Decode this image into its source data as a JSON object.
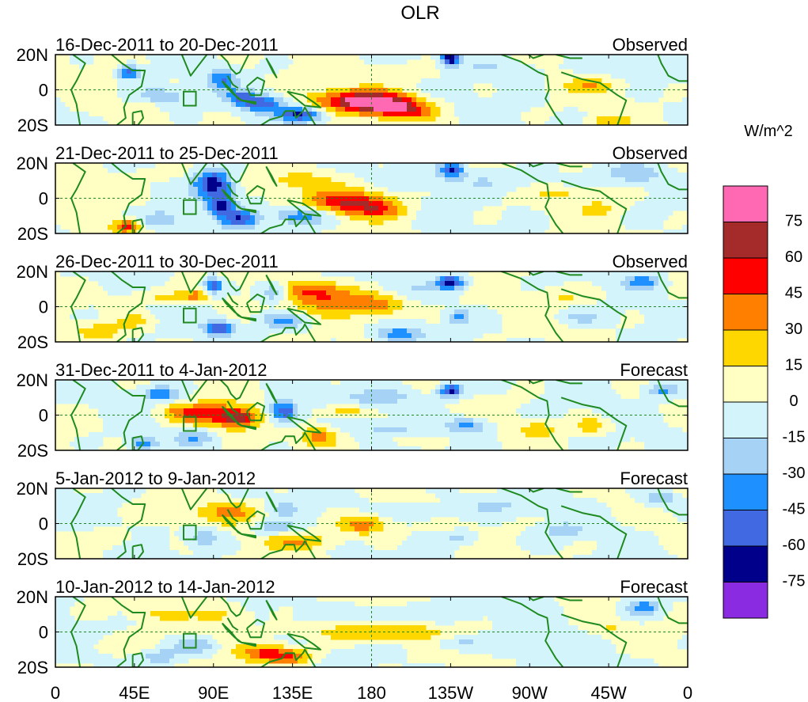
{
  "chart_data": {
    "type": "heatmap",
    "title": "OLR",
    "units_label": "W/m^2",
    "x_ticks": [
      "0",
      "45E",
      "90E",
      "135E",
      "180",
      "135W",
      "90W",
      "45W",
      "0"
    ],
    "x_tick_lon": [
      0,
      45,
      90,
      135,
      180,
      225,
      270,
      315,
      360
    ],
    "y_ticks": [
      "20N",
      "0",
      "20S"
    ],
    "y_tick_lat": [
      20,
      0,
      -20
    ],
    "lat_range": [
      -20,
      20
    ],
    "lon_range": [
      0,
      360
    ],
    "colorbar": {
      "labels": [
        "75",
        "60",
        "45",
        "30",
        "15",
        "0",
        "-15",
        "-30",
        "-45",
        "-60",
        "-75"
      ],
      "levels": [
        75,
        60,
        45,
        30,
        15,
        0,
        -15,
        -30,
        -45,
        -60,
        -75
      ],
      "colors": [
        "#ff69b4",
        "#a52a2a",
        "#ff0000",
        "#ff7f00",
        "#ffd700",
        "#ffffc4",
        "#d4f4fb",
        "#a6d2f5",
        "#1e90ff",
        "#4169e1",
        "#00008b",
        "#8a2be2"
      ]
    },
    "panels": [
      {
        "period": "16-Dec-2011 to 20-Dec-2011",
        "status": "Observed",
        "blobs": [
          [
            170,
            -6,
            25,
            6,
            55
          ],
          [
            185,
            -8,
            20,
            6,
            55
          ],
          [
            200,
            -12,
            15,
            5,
            45
          ],
          [
            225,
            18,
            5,
            4,
            -75
          ],
          [
            118,
            -8,
            12,
            5,
            -55
          ],
          [
            140,
            -14,
            12,
            4,
            -60
          ],
          [
            95,
            6,
            8,
            6,
            -40
          ],
          [
            60,
            -4,
            15,
            5,
            -35
          ],
          [
            42,
            10,
            6,
            4,
            -55
          ],
          [
            105,
            -4,
            8,
            4,
            -40
          ],
          [
            305,
            2,
            15,
            4,
            25
          ],
          [
            315,
            -18,
            10,
            3,
            30
          ],
          [
            50,
            -8,
            8,
            4,
            20
          ],
          [
            250,
            12,
            30,
            6,
            -15
          ],
          [
            200,
            10,
            40,
            6,
            10
          ],
          [
            330,
            14,
            20,
            5,
            -15
          ],
          [
            20,
            -10,
            12,
            4,
            10
          ]
        ]
      },
      {
        "period": "21-Dec-2011 to 25-Dec-2011",
        "status": "Observed",
        "blobs": [
          [
            165,
            -2,
            22,
            7,
            55
          ],
          [
            185,
            -6,
            15,
            6,
            35
          ],
          [
            90,
            8,
            10,
            8,
            -70
          ],
          [
            95,
            -4,
            8,
            6,
            -55
          ],
          [
            105,
            -12,
            10,
            5,
            -50
          ],
          [
            40,
            -16,
            8,
            4,
            50
          ],
          [
            60,
            -12,
            12,
            5,
            -30
          ],
          [
            225,
            16,
            7,
            4,
            -60
          ],
          [
            140,
            -10,
            15,
            5,
            -45
          ],
          [
            140,
            10,
            20,
            5,
            20
          ],
          [
            295,
            2,
            25,
            4,
            15
          ],
          [
            310,
            -6,
            12,
            4,
            20
          ],
          [
            330,
            14,
            15,
            5,
            -25
          ],
          [
            20,
            8,
            15,
            6,
            10
          ],
          [
            250,
            10,
            30,
            6,
            -15
          ],
          [
            60,
            14,
            15,
            4,
            15
          ]
        ]
      },
      {
        "period": "26-Dec-2011 to 30-Dec-2011",
        "status": "Observed",
        "blobs": [
          [
            160,
            4,
            30,
            8,
            40
          ],
          [
            145,
            10,
            20,
            5,
            30
          ],
          [
            185,
            0,
            15,
            6,
            25
          ],
          [
            90,
            12,
            5,
            4,
            -60
          ],
          [
            93,
            -12,
            8,
            4,
            -60
          ],
          [
            125,
            8,
            10,
            6,
            -45
          ],
          [
            130,
            -8,
            12,
            5,
            -40
          ],
          [
            195,
            -16,
            12,
            4,
            -45
          ],
          [
            225,
            14,
            8,
            4,
            -70
          ],
          [
            230,
            -6,
            6,
            4,
            -35
          ],
          [
            335,
            14,
            10,
            4,
            -40
          ],
          [
            60,
            6,
            20,
            4,
            20
          ],
          [
            45,
            -8,
            10,
            4,
            20
          ],
          [
            80,
            6,
            6,
            4,
            30
          ],
          [
            290,
            6,
            20,
            4,
            15
          ],
          [
            300,
            -6,
            12,
            4,
            -20
          ],
          [
            25,
            -14,
            12,
            4,
            25
          ],
          [
            200,
            10,
            25,
            5,
            -15
          ]
        ]
      },
      {
        "period": "31-Dec-2011 to 4-Jan-2012",
        "status": "Forecast",
        "blobs": [
          [
            90,
            0,
            22,
            7,
            50
          ],
          [
            105,
            -2,
            10,
            5,
            40
          ],
          [
            130,
            2,
            8,
            6,
            -65
          ],
          [
            150,
            -12,
            10,
            5,
            35
          ],
          [
            165,
            2,
            12,
            4,
            30
          ],
          [
            70,
            2,
            10,
            4,
            20
          ],
          [
            225,
            14,
            7,
            4,
            -70
          ],
          [
            235,
            -6,
            12,
            4,
            -40
          ],
          [
            80,
            -12,
            10,
            5,
            -30
          ],
          [
            50,
            -16,
            8,
            4,
            -40
          ],
          [
            345,
            14,
            10,
            4,
            -35
          ],
          [
            60,
            12,
            10,
            4,
            -45
          ],
          [
            275,
            -8,
            10,
            4,
            25
          ],
          [
            305,
            -6,
            10,
            4,
            30
          ],
          [
            185,
            10,
            25,
            5,
            -20
          ],
          [
            190,
            -8,
            20,
            5,
            -15
          ],
          [
            200,
            -14,
            10,
            3,
            20
          ]
        ]
      },
      {
        "period": "5-Jan-2012 to 9-Jan-2012",
        "status": "Forecast",
        "blobs": [
          [
            175,
            0,
            15,
            6,
            45
          ],
          [
            100,
            6,
            18,
            6,
            30
          ],
          [
            85,
            -8,
            10,
            5,
            -30
          ],
          [
            140,
            -10,
            20,
            5,
            30
          ],
          [
            125,
            -2,
            12,
            4,
            -30
          ],
          [
            65,
            6,
            15,
            5,
            15
          ],
          [
            345,
            14,
            10,
            4,
            -35
          ],
          [
            290,
            -4,
            10,
            4,
            -25
          ],
          [
            230,
            -8,
            12,
            4,
            -20
          ],
          [
            200,
            6,
            30,
            5,
            -15
          ],
          [
            30,
            -8,
            15,
            5,
            15
          ],
          [
            250,
            10,
            25,
            5,
            -15
          ],
          [
            130,
            8,
            10,
            4,
            -20
          ]
        ]
      },
      {
        "period": "10-Jan-2012 to 14-Jan-2012",
        "status": "Forecast",
        "blobs": [
          [
            180,
            0,
            40,
            5,
            30
          ],
          [
            120,
            -12,
            15,
            5,
            45
          ],
          [
            135,
            -14,
            12,
            4,
            35
          ],
          [
            95,
            10,
            15,
            6,
            20
          ],
          [
            60,
            10,
            15,
            4,
            15
          ],
          [
            80,
            -8,
            12,
            5,
            -30
          ],
          [
            60,
            -14,
            10,
            4,
            -25
          ],
          [
            335,
            14,
            10,
            5,
            -40
          ],
          [
            315,
            2,
            10,
            4,
            15
          ],
          [
            230,
            -6,
            15,
            4,
            -20
          ],
          [
            200,
            10,
            35,
            5,
            -15
          ],
          [
            35,
            -8,
            15,
            5,
            15
          ],
          [
            270,
            -10,
            20,
            4,
            -15
          ]
        ]
      }
    ]
  }
}
